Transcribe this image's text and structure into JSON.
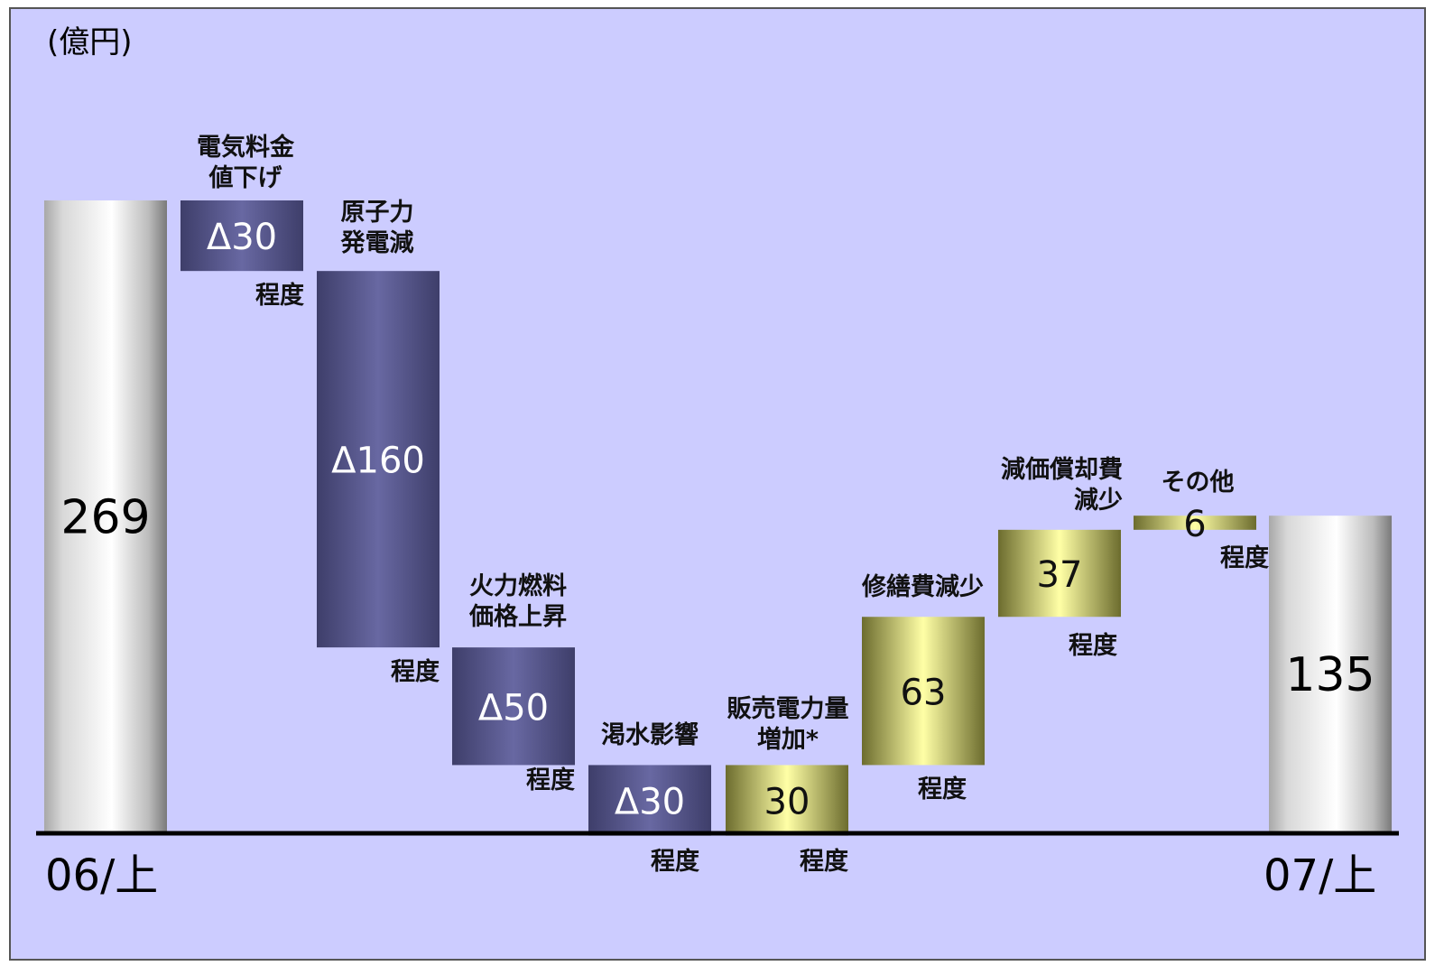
{
  "chart_data": {
    "type": "bar",
    "variant": "waterfall",
    "unit_label": "(億円)",
    "start": {
      "category": "06/上",
      "value": 269,
      "display": "269"
    },
    "end": {
      "category": "07/上",
      "value": 135,
      "display": "135"
    },
    "steps": [
      {
        "label": [
          "電気料金",
          "値下げ"
        ],
        "delta": -30,
        "display": "Δ30",
        "note": "程度"
      },
      {
        "label": [
          "原子力",
          "発電減"
        ],
        "delta": -160,
        "display": "Δ160",
        "note": "程度"
      },
      {
        "label": [
          "火力燃料",
          "価格上昇"
        ],
        "delta": -50,
        "display": "Δ50",
        "note": "程度"
      },
      {
        "label": [
          "渇水影響"
        ],
        "delta": -30,
        "display": "Δ30",
        "note": "程度"
      },
      {
        "label": [
          "販売電力量",
          "増加*"
        ],
        "delta": 30,
        "display": "30",
        "note": "程度"
      },
      {
        "label": [
          "修繕費減少"
        ],
        "delta": 63,
        "display": "63",
        "note": "程度"
      },
      {
        "label": [
          "減価償却費",
          "減少"
        ],
        "delta": 37,
        "display": "37",
        "note": "程度"
      },
      {
        "label": [
          "その他"
        ],
        "delta": 6,
        "display": "6",
        "note": "程度"
      }
    ],
    "ylim": [
      0,
      269
    ],
    "grid": false,
    "colors": {
      "background": "#ccccff",
      "total_bar": "#c8c8c8",
      "negative_bar": "#5a5a90",
      "positive_bar": "#f0f0a0",
      "baseline": "#000000"
    }
  }
}
